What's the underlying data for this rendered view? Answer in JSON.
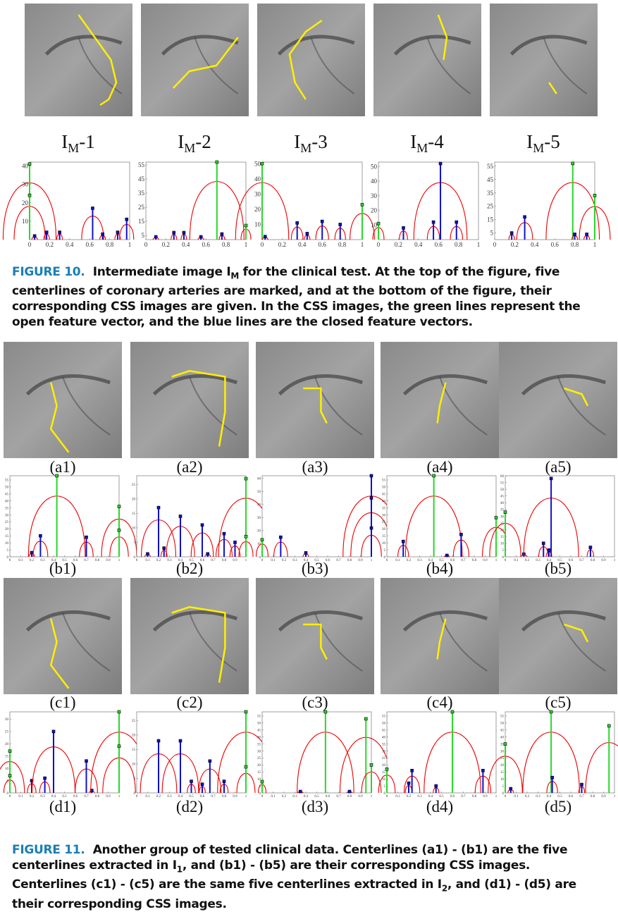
{
  "figure10": {
    "panels": [
      {
        "main": "I",
        "sub": "M",
        "suffix": "-1"
      },
      {
        "main": "I",
        "sub": "M",
        "suffix": "-2"
      },
      {
        "main": "I",
        "sub": "M",
        "suffix": "-3"
      },
      {
        "main": "I",
        "sub": "M",
        "suffix": "-4"
      },
      {
        "main": "I",
        "sub": "M",
        "suffix": "-5"
      }
    ],
    "plots": [
      {
        "xlim": [
          0,
          1
        ],
        "ylim": [
          0,
          42
        ],
        "xticks": [
          0,
          0.2,
          0.4,
          0.6,
          0.8,
          1
        ],
        "yticks": [
          10,
          20,
          30,
          40
        ],
        "lines": [
          {
            "x": 0,
            "y": 41,
            "kind": "open"
          },
          {
            "x": 0,
            "y": 24,
            "kind": "open"
          },
          {
            "x": 0.05,
            "y": 2,
            "kind": "closed"
          },
          {
            "x": 0.17,
            "y": 4,
            "kind": "closed"
          },
          {
            "x": 0.3,
            "y": 4,
            "kind": "closed"
          },
          {
            "x": 0.63,
            "y": 17,
            "kind": "closed"
          },
          {
            "x": 0.73,
            "y": 3,
            "kind": "closed"
          },
          {
            "x": 0.88,
            "y": 4,
            "kind": "closed"
          },
          {
            "x": 0.97,
            "y": 11,
            "kind": "closed"
          }
        ]
      },
      {
        "xlim": [
          0,
          1
        ],
        "ylim": [
          2,
          57
        ],
        "xticks": [
          0,
          0.2,
          0.4,
          0.6,
          0.8,
          1
        ],
        "yticks": [
          5,
          15,
          25,
          35,
          45,
          55
        ],
        "lines": [
          {
            "x": 0.1,
            "y": 4,
            "kind": "closed"
          },
          {
            "x": 0.28,
            "y": 7,
            "kind": "closed"
          },
          {
            "x": 0.38,
            "y": 7,
            "kind": "closed"
          },
          {
            "x": 0.55,
            "y": 4,
            "kind": "closed"
          },
          {
            "x": 0.71,
            "y": 57,
            "kind": "open"
          },
          {
            "x": 0.76,
            "y": 6,
            "kind": "closed"
          },
          {
            "x": 1,
            "y": 12,
            "kind": "open"
          }
        ]
      },
      {
        "xlim": [
          0,
          1
        ],
        "ylim": [
          0,
          51
        ],
        "xticks": [
          0,
          0.2,
          0.4,
          0.6,
          0.8,
          1
        ],
        "yticks": [
          10,
          20,
          30,
          40,
          50
        ],
        "lines": [
          {
            "x": 0,
            "y": 50,
            "kind": "open"
          },
          {
            "x": 0.03,
            "y": 2,
            "kind": "closed"
          },
          {
            "x": 0.35,
            "y": 11,
            "kind": "closed"
          },
          {
            "x": 0.45,
            "y": 4,
            "kind": "closed"
          },
          {
            "x": 0.6,
            "y": 12,
            "kind": "closed"
          },
          {
            "x": 0.78,
            "y": 10,
            "kind": "closed"
          },
          {
            "x": 1,
            "y": 23,
            "kind": "open"
          }
        ]
      },
      {
        "xlim": [
          0,
          1
        ],
        "ylim": [
          0,
          53
        ],
        "xticks": [
          0,
          0.2,
          0.4,
          0.6,
          0.8,
          1
        ],
        "yticks": [
          10,
          20,
          30,
          40,
          50
        ],
        "lines": [
          {
            "x": 0,
            "y": 11,
            "kind": "open"
          },
          {
            "x": 0.25,
            "y": 8,
            "kind": "closed"
          },
          {
            "x": 0.55,
            "y": 12,
            "kind": "closed"
          },
          {
            "x": 0.62,
            "y": 52,
            "kind": "closed"
          },
          {
            "x": 0.78,
            "y": 12,
            "kind": "closed"
          }
        ]
      },
      {
        "xlim": [
          0,
          1
        ],
        "ylim": [
          0,
          58
        ],
        "xticks": [
          0,
          0.2,
          0.4,
          0.6,
          0.8,
          1
        ],
        "yticks": [
          5,
          15,
          25,
          35,
          45,
          55
        ],
        "lines": [
          {
            "x": 0.17,
            "y": 5,
            "kind": "closed"
          },
          {
            "x": 0.3,
            "y": 17,
            "kind": "closed"
          },
          {
            "x": 0.78,
            "y": 57,
            "kind": "open"
          },
          {
            "x": 0.8,
            "y": 4,
            "kind": "closed"
          },
          {
            "x": 0.92,
            "y": 4,
            "kind": "closed"
          },
          {
            "x": 1,
            "y": 33,
            "kind": "open"
          }
        ]
      }
    ],
    "caption": {
      "label": "FIGURE 10.",
      "before": "Intermediate image I",
      "sub": "M",
      "after": " for the clinical test. At the top of the figure, five centerlines of coronary arteries are marked, and at the bottom of the figure, their corresponding CSS images are given. In the CSS images, the green lines represent the open feature vector, and the blue lines are the closed feature vectors."
    }
  },
  "figure11": {
    "a_labels": [
      "(a1)",
      "(a2)",
      "(a3)",
      "(a4)",
      "(a5)"
    ],
    "b_labels": [
      "(b1)",
      "(b2)",
      "(b3)",
      "(b4)",
      "(b5)"
    ],
    "c_labels": [
      "(c1)",
      "(c2)",
      "(c3)",
      "(c4)",
      "(c5)"
    ],
    "d_labels": [
      "(d1)",
      "(d2)",
      "(d3)",
      "(d4)",
      "(d5)"
    ],
    "b_plots": [
      {
        "xlim": [
          0,
          1
        ],
        "ylim": [
          0,
          58
        ],
        "xticks": [
          0,
          0.1,
          0.2,
          0.3,
          0.4,
          0.5,
          0.6,
          0.7,
          0.8,
          0.9,
          1
        ],
        "yticks": [
          0,
          5,
          10,
          15,
          20,
          25,
          30,
          35,
          40,
          45,
          50,
          55
        ],
        "lines": [
          {
            "x": 0.2,
            "y": 3,
            "kind": "closed"
          },
          {
            "x": 0.28,
            "y": 15,
            "kind": "closed"
          },
          {
            "x": 0.43,
            "y": 58,
            "kind": "open"
          },
          {
            "x": 0.7,
            "y": 14,
            "kind": "closed"
          },
          {
            "x": 1,
            "y": 36,
            "kind": "open"
          },
          {
            "x": 1,
            "y": 19,
            "kind": "open"
          }
        ]
      },
      {
        "xlim": [
          0,
          1
        ],
        "ylim": [
          0,
          28
        ],
        "xticks": [
          0,
          0.1,
          0.2,
          0.3,
          0.4,
          0.5,
          0.6,
          0.7,
          0.8,
          0.9,
          1
        ],
        "yticks": [
          0,
          5,
          10,
          15,
          20,
          25
        ],
        "lines": [
          {
            "x": 0.1,
            "y": 1,
            "kind": "closed"
          },
          {
            "x": 0.2,
            "y": 17,
            "kind": "closed"
          },
          {
            "x": 0.25,
            "y": 3,
            "kind": "closed"
          },
          {
            "x": 0.4,
            "y": 14,
            "kind": "closed"
          },
          {
            "x": 0.6,
            "y": 11,
            "kind": "closed"
          },
          {
            "x": 0.65,
            "y": 1,
            "kind": "closed"
          },
          {
            "x": 0.8,
            "y": 8,
            "kind": "closed"
          },
          {
            "x": 0.9,
            "y": 5,
            "kind": "closed"
          },
          {
            "x": 1,
            "y": 27,
            "kind": "open"
          },
          {
            "x": 1,
            "y": 7,
            "kind": "open"
          }
        ]
      },
      {
        "xlim": [
          0,
          1
        ],
        "ylim": [
          0,
          62
        ],
        "xticks": [
          0,
          0.1,
          0.2,
          0.3,
          0.4,
          0.5,
          0.6,
          0.7,
          0.8,
          0.9,
          1
        ],
        "yticks": [
          0,
          10,
          20,
          30,
          40,
          50,
          60
        ],
        "lines": [
          {
            "x": 0,
            "y": 13,
            "kind": "open"
          },
          {
            "x": 0.17,
            "y": 15,
            "kind": "closed"
          },
          {
            "x": 0.4,
            "y": 3,
            "kind": "closed"
          },
          {
            "x": 1,
            "y": 62,
            "kind": "closed"
          },
          {
            "x": 1,
            "y": 45,
            "kind": "closed"
          },
          {
            "x": 1,
            "y": 22,
            "kind": "closed"
          }
        ]
      },
      {
        "xlim": [
          0,
          1
        ],
        "ylim": [
          0,
          58
        ],
        "xticks": [
          0,
          0.1,
          0.2,
          0.3,
          0.4,
          0.5,
          0.6,
          0.7,
          0.8,
          0.9,
          1
        ],
        "yticks": [
          0,
          5,
          10,
          15,
          20,
          25,
          30,
          35,
          40,
          45,
          50,
          55
        ],
        "lines": [
          {
            "x": 0.15,
            "y": 11,
            "kind": "closed"
          },
          {
            "x": 0.43,
            "y": 58,
            "kind": "open"
          },
          {
            "x": 0.55,
            "y": 1,
            "kind": "closed"
          },
          {
            "x": 0.68,
            "y": 16,
            "kind": "closed"
          },
          {
            "x": 1,
            "y": 28,
            "kind": "open"
          }
        ]
      },
      {
        "xlim": [
          0,
          1
        ],
        "ylim": [
          0,
          60
        ],
        "xticks": [
          0,
          0.1,
          0.2,
          0.3,
          0.4,
          0.5,
          0.6,
          0.7,
          0.8,
          0.9,
          1
        ],
        "yticks": [
          0,
          5,
          10,
          15,
          20,
          25,
          30,
          35,
          40,
          45,
          50,
          55,
          60
        ],
        "lines": [
          {
            "x": 0,
            "y": 33,
            "kind": "open"
          },
          {
            "x": 0.17,
            "y": 2,
            "kind": "closed"
          },
          {
            "x": 0.35,
            "y": 10,
            "kind": "closed"
          },
          {
            "x": 0.4,
            "y": 5,
            "kind": "closed"
          },
          {
            "x": 0.42,
            "y": 58,
            "kind": "closed"
          },
          {
            "x": 0.78,
            "y": 7,
            "kind": "closed"
          }
        ]
      }
    ],
    "d_plots": [
      {
        "xlim": [
          0,
          1
        ],
        "ylim": [
          0,
          33
        ],
        "xticks": [
          0,
          0.1,
          0.2,
          0.3,
          0.4,
          0.5,
          0.6,
          0.7,
          0.8,
          0.9,
          1
        ],
        "yticks": [
          0,
          5,
          10,
          15,
          20,
          25,
          30
        ],
        "lines": [
          {
            "x": 0,
            "y": 17,
            "kind": "open"
          },
          {
            "x": 0,
            "y": 7,
            "kind": "open"
          },
          {
            "x": 0.2,
            "y": 5,
            "kind": "closed"
          },
          {
            "x": 0.32,
            "y": 6,
            "kind": "closed"
          },
          {
            "x": 0.4,
            "y": 25,
            "kind": "closed"
          },
          {
            "x": 0.7,
            "y": 13,
            "kind": "closed"
          },
          {
            "x": 0.75,
            "y": 1,
            "kind": "closed"
          },
          {
            "x": 1,
            "y": 33,
            "kind": "open"
          },
          {
            "x": 1,
            "y": 19,
            "kind": "open"
          }
        ]
      },
      {
        "xlim": [
          0,
          1
        ],
        "ylim": [
          0,
          28
        ],
        "xticks": [
          0,
          0.1,
          0.2,
          0.3,
          0.4,
          0.5,
          0.6,
          0.7,
          0.8,
          0.9,
          1
        ],
        "yticks": [
          0,
          5,
          10,
          15,
          20,
          25
        ],
        "lines": [
          {
            "x": 0.2,
            "y": 18,
            "kind": "closed"
          },
          {
            "x": 0.4,
            "y": 18,
            "kind": "closed"
          },
          {
            "x": 0.5,
            "y": 4,
            "kind": "closed"
          },
          {
            "x": 0.6,
            "y": 3,
            "kind": "closed"
          },
          {
            "x": 0.67,
            "y": 11,
            "kind": "closed"
          },
          {
            "x": 0.8,
            "y": 4,
            "kind": "closed"
          },
          {
            "x": 1,
            "y": 28,
            "kind": "open"
          },
          {
            "x": 1,
            "y": 9,
            "kind": "open"
          }
        ]
      },
      {
        "xlim": [
          0,
          1
        ],
        "ylim": [
          0,
          58
        ],
        "xticks": [
          0,
          0.1,
          0.2,
          0.3,
          0.4,
          0.5,
          0.6,
          0.7,
          0.8,
          0.9,
          1
        ],
        "yticks": [
          0,
          5,
          10,
          15,
          20,
          25,
          30,
          35,
          40,
          45,
          50,
          55
        ],
        "lines": [
          {
            "x": 0,
            "y": 8,
            "kind": "open"
          },
          {
            "x": 0.35,
            "y": 1,
            "kind": "closed"
          },
          {
            "x": 0.58,
            "y": 58,
            "kind": "open"
          },
          {
            "x": 0.8,
            "y": 1,
            "kind": "closed"
          },
          {
            "x": 0.95,
            "y": 53,
            "kind": "open"
          },
          {
            "x": 1,
            "y": 20,
            "kind": "open"
          }
        ]
      },
      {
        "xlim": [
          0,
          1
        ],
        "ylim": [
          0,
          58
        ],
        "xticks": [
          0,
          0.1,
          0.2,
          0.3,
          0.4,
          0.5,
          0.6,
          0.7,
          0.8,
          0.9,
          1
        ],
        "yticks": [
          0,
          5,
          10,
          15,
          20,
          25,
          30,
          35,
          40,
          45,
          50,
          55
        ],
        "lines": [
          {
            "x": 0,
            "y": 17,
            "kind": "open"
          },
          {
            "x": 0.2,
            "y": 7,
            "kind": "closed"
          },
          {
            "x": 0.23,
            "y": 16,
            "kind": "closed"
          },
          {
            "x": 0.45,
            "y": 5,
            "kind": "closed"
          },
          {
            "x": 0.6,
            "y": 58,
            "kind": "open"
          },
          {
            "x": 0.88,
            "y": 16,
            "kind": "closed"
          }
        ]
      },
      {
        "xlim": [
          0,
          1
        ],
        "ylim": [
          0,
          58
        ],
        "xticks": [
          0,
          0.1,
          0.2,
          0.3,
          0.4,
          0.5,
          0.6,
          0.7,
          0.8,
          0.9,
          1
        ],
        "yticks": [
          0,
          5,
          10,
          15,
          20,
          25,
          30,
          35,
          40,
          45,
          50,
          55
        ],
        "lines": [
          {
            "x": 0,
            "y": 35,
            "kind": "open"
          },
          {
            "x": 0.05,
            "y": 3,
            "kind": "closed"
          },
          {
            "x": 0.42,
            "y": 58,
            "kind": "open"
          },
          {
            "x": 0.43,
            "y": 11,
            "kind": "closed"
          },
          {
            "x": 0.7,
            "y": 6,
            "kind": "closed"
          },
          {
            "x": 0.95,
            "y": 48,
            "kind": "open"
          }
        ]
      }
    ],
    "caption": {
      "label": "FIGURE 11.",
      "before": "Another group of tested clinical data. Centerlines (a1) - (b1) are the five centerlines extracted in I",
      "sub1": "1",
      "middle": ", and (b1) - (b5) are their corresponding CSS images. Centerlines (c1) - (c5) are the same five centerlines extracted in I",
      "sub2": "2",
      "after": ", and (d1) - (d5) are their corresponding CSS images."
    }
  }
}
